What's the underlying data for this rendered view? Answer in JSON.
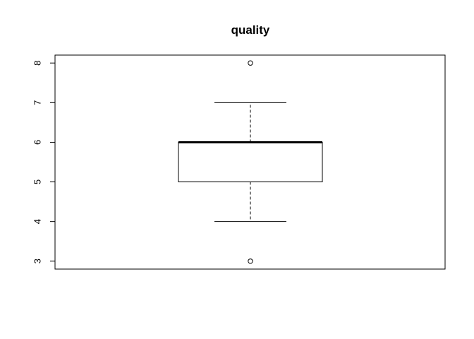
{
  "chart_data": {
    "type": "boxplot",
    "title": "quality",
    "xlabel": "",
    "ylabel": "",
    "ylim": [
      2.8,
      8.2
    ],
    "yticks": [
      "3",
      "4",
      "5",
      "6",
      "7",
      "8"
    ],
    "grid": false,
    "box": {
      "whisker_low": 4,
      "q1": 5,
      "median": 6,
      "q3": 6,
      "whisker_high": 7
    },
    "outliers": [
      3,
      8
    ]
  }
}
